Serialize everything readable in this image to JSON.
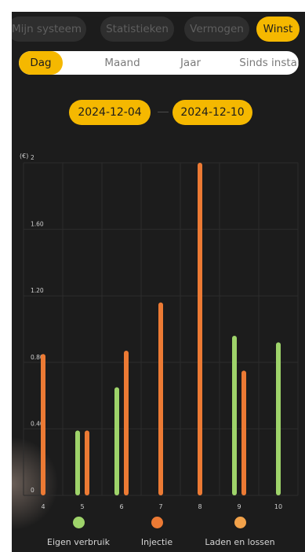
{
  "top_tabs": [
    {
      "label": "Mijn systeem",
      "active": false
    },
    {
      "label": "Statistieken",
      "active": false
    },
    {
      "label": "Vermogen",
      "active": false
    },
    {
      "label": "Winst",
      "active": true
    }
  ],
  "period_tabs": [
    {
      "label": "Dag",
      "active": true
    },
    {
      "label": "Maand",
      "active": false
    },
    {
      "label": "Jaar",
      "active": false
    },
    {
      "label": "Sinds instal",
      "active": false
    }
  ],
  "date_range": {
    "start": "2024-12-04",
    "end": "2024-12-10"
  },
  "colors": {
    "accent": "#f5b800",
    "eigen_verbruik": "#9ed36a",
    "injectie": "#ec7a34",
    "laden_en_lossen": "#f2a24a",
    "background": "#1c1c1c"
  },
  "chart_data": {
    "type": "bar",
    "ylabel": "(€)",
    "ylim": [
      0,
      2
    ],
    "yticks": [
      "0",
      "0.40",
      "0.80",
      "1.20",
      "1.60",
      "2"
    ],
    "categories": [
      "4",
      "5",
      "6",
      "7",
      "8",
      "9",
      "10"
    ],
    "grid": true,
    "legend_position": "bottom",
    "series": [
      {
        "name": "Eigen verbruik",
        "values": [
          0,
          0.39,
          0.65,
          0,
          0,
          0.96,
          0.92
        ]
      },
      {
        "name": "Injectie",
        "values": [
          0.85,
          0.39,
          0.87,
          1.16,
          2.0,
          0.75,
          0
        ]
      },
      {
        "name": "Laden en lossen",
        "values": [
          0,
          0,
          0,
          0,
          0,
          0,
          0
        ]
      }
    ]
  }
}
